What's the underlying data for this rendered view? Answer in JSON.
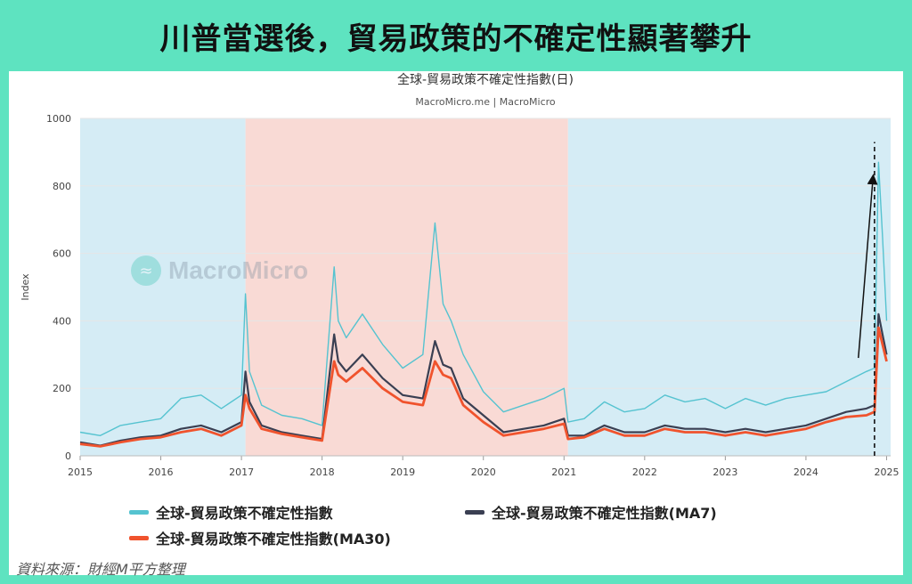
{
  "banner_title": "川普當選後，貿易政策的不確定性顯著攀升",
  "source_note": "資料來源：財經M平方整理",
  "watermark": "MacroMicro",
  "colors": {
    "background": "#5ee3c0",
    "band_blue": "#d5ecf5",
    "band_red": "#f9dad5",
    "daily": "#55c3d0",
    "ma7": "#3a3f52",
    "ma30": "#f0532d"
  },
  "chart_data": {
    "type": "line",
    "title": "全球-貿易政策不確定性指數(日)",
    "subtitle": "MacroMicro.me | MacroMicro",
    "ylabel": "Index",
    "ylim": [
      0,
      1000
    ],
    "yticks": [
      0,
      200,
      400,
      600,
      800,
      1000
    ],
    "xlim": [
      2015,
      2025.05
    ],
    "xticks": [
      "2015",
      "2016",
      "2017",
      "2018",
      "2019",
      "2020",
      "2021",
      "2022",
      "2023",
      "2024",
      "2025"
    ],
    "shaded_periods": [
      {
        "start": 2015.0,
        "end": 2017.05,
        "color": "blue"
      },
      {
        "start": 2017.05,
        "end": 2021.05,
        "color": "red"
      },
      {
        "start": 2021.05,
        "end": 2025.05,
        "color": "blue"
      }
    ],
    "annotations": [
      {
        "type": "arrow",
        "from": [
          2024.65,
          290
        ],
        "to": [
          2024.83,
          820
        ]
      },
      {
        "type": "dashed-vline",
        "x": 2024.85,
        "ymin": 0,
        "ymax": 930
      }
    ],
    "series": [
      {
        "name": "全球-貿易政策不確定性指數",
        "role": "daily",
        "x": [
          2015.0,
          2015.25,
          2015.5,
          2015.75,
          2016.0,
          2016.25,
          2016.5,
          2016.75,
          2017.0,
          2017.05,
          2017.1,
          2017.25,
          2017.5,
          2017.75,
          2018.0,
          2018.15,
          2018.2,
          2018.3,
          2018.5,
          2018.75,
          2019.0,
          2019.25,
          2019.4,
          2019.5,
          2019.6,
          2019.75,
          2020.0,
          2020.25,
          2020.5,
          2020.75,
          2021.0,
          2021.05,
          2021.25,
          2021.5,
          2021.75,
          2022.0,
          2022.25,
          2022.5,
          2022.75,
          2023.0,
          2023.25,
          2023.5,
          2023.75,
          2024.0,
          2024.25,
          2024.5,
          2024.75,
          2024.85,
          2024.9,
          2024.95,
          2025.0
        ],
        "values": [
          70,
          60,
          90,
          100,
          110,
          170,
          180,
          140,
          180,
          480,
          250,
          150,
          120,
          110,
          90,
          560,
          400,
          350,
          420,
          330,
          260,
          300,
          690,
          450,
          400,
          300,
          190,
          130,
          150,
          170,
          200,
          100,
          110,
          160,
          130,
          140,
          180,
          160,
          170,
          140,
          170,
          150,
          170,
          180,
          190,
          220,
          250,
          260,
          870,
          650,
          400
        ]
      },
      {
        "name": "全球-貿易政策不確定性指數(MA7)",
        "role": "ma7",
        "x": [
          2015.0,
          2015.25,
          2015.5,
          2015.75,
          2016.0,
          2016.25,
          2016.5,
          2016.75,
          2017.0,
          2017.05,
          2017.1,
          2017.25,
          2017.5,
          2017.75,
          2018.0,
          2018.15,
          2018.2,
          2018.3,
          2018.5,
          2018.75,
          2019.0,
          2019.25,
          2019.4,
          2019.5,
          2019.6,
          2019.75,
          2020.0,
          2020.25,
          2020.5,
          2020.75,
          2021.0,
          2021.05,
          2021.25,
          2021.5,
          2021.75,
          2022.0,
          2022.25,
          2022.5,
          2022.75,
          2023.0,
          2023.25,
          2023.5,
          2023.75,
          2024.0,
          2024.25,
          2024.5,
          2024.75,
          2024.85,
          2024.9,
          2024.95,
          2025.0
        ],
        "values": [
          40,
          30,
          45,
          55,
          60,
          80,
          90,
          70,
          100,
          250,
          160,
          90,
          70,
          60,
          50,
          360,
          280,
          250,
          300,
          230,
          180,
          170,
          340,
          270,
          260,
          170,
          120,
          70,
          80,
          90,
          110,
          60,
          60,
          90,
          70,
          70,
          90,
          80,
          80,
          70,
          80,
          70,
          80,
          90,
          110,
          130,
          140,
          150,
          420,
          360,
          300
        ]
      },
      {
        "name": "全球-貿易政策不確定性指數(MA30)",
        "role": "ma30",
        "x": [
          2015.0,
          2015.25,
          2015.5,
          2015.75,
          2016.0,
          2016.25,
          2016.5,
          2016.75,
          2017.0,
          2017.05,
          2017.1,
          2017.25,
          2017.5,
          2017.75,
          2018.0,
          2018.15,
          2018.2,
          2018.3,
          2018.5,
          2018.75,
          2019.0,
          2019.25,
          2019.4,
          2019.5,
          2019.6,
          2019.75,
          2020.0,
          2020.25,
          2020.5,
          2020.75,
          2021.0,
          2021.05,
          2021.25,
          2021.5,
          2021.75,
          2022.0,
          2022.25,
          2022.5,
          2022.75,
          2023.0,
          2023.25,
          2023.5,
          2023.75,
          2024.0,
          2024.25,
          2024.5,
          2024.75,
          2024.85,
          2024.9,
          2024.95,
          2025.0
        ],
        "values": [
          35,
          28,
          40,
          50,
          55,
          70,
          80,
          60,
          90,
          180,
          140,
          80,
          65,
          55,
          45,
          280,
          240,
          220,
          260,
          200,
          160,
          150,
          280,
          240,
          230,
          150,
          100,
          60,
          70,
          80,
          95,
          50,
          55,
          80,
          60,
          60,
          80,
          70,
          70,
          60,
          70,
          60,
          70,
          80,
          100,
          115,
          120,
          130,
          380,
          330,
          280
        ]
      }
    ],
    "legend": [
      {
        "label": "全球-貿易政策不確定性指數",
        "color": "#55c3d0"
      },
      {
        "label": "全球-貿易政策不確定性指數(MA7)",
        "color": "#3a3f52"
      },
      {
        "label": "全球-貿易政策不確定性指數(MA30)",
        "color": "#f0532d"
      }
    ]
  }
}
